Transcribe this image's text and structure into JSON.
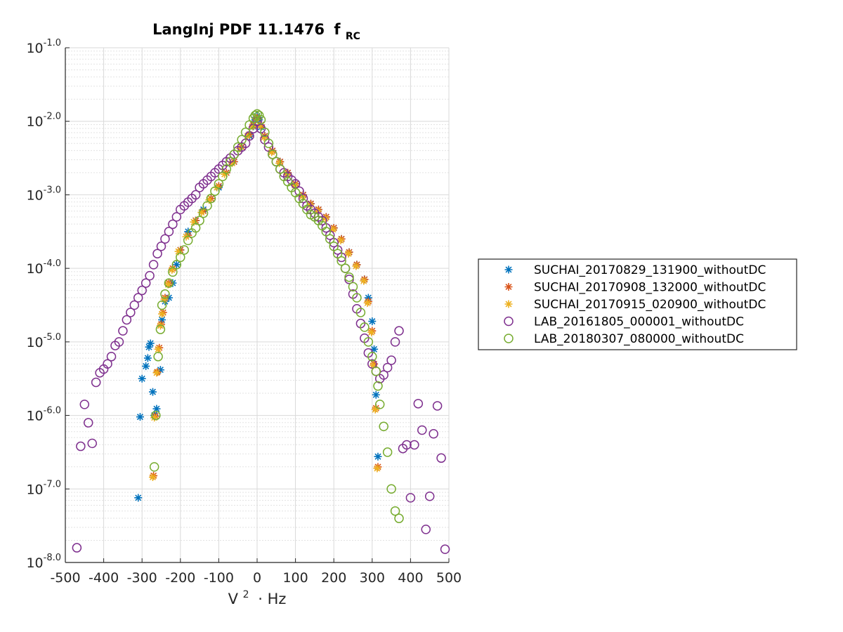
{
  "chart_data": {
    "type": "scatter",
    "title": "LangInj PDF 11.1476",
    "title_subscript": "RC",
    "title_f": "f",
    "xlabel": "V",
    "xlabel_sup": "2",
    "xlabel_unit": "· Hz",
    "ylabel": "",
    "xlim": [
      -500,
      500
    ],
    "ylim": [
      -8,
      -1
    ],
    "y_scale": "log10",
    "grid": true,
    "minor_grid": true,
    "legend_placement": "outside-right",
    "x_ticks": [
      -500,
      -400,
      -300,
      -200,
      -100,
      0,
      100,
      200,
      300,
      400,
      500
    ],
    "x_tick_labels": [
      "-500",
      "-400",
      "-300",
      "-200",
      "-100",
      "0",
      "100",
      "200",
      "300",
      "400",
      "500"
    ],
    "y_ticks": [
      -1,
      -2,
      -3,
      -4,
      -5,
      -6,
      -7,
      -8
    ],
    "y_tick_labels": [
      "-1.0",
      "-2.0",
      "-3.0",
      "-4.0",
      "-5.0",
      "-6.0",
      "-7.0",
      "-8.0"
    ],
    "y_tick_base": "10",
    "series": [
      {
        "name": "SUCHAI_20170829_131900_withoutDC",
        "marker": "asterisk",
        "color": "#0072BD",
        "x": [
          -310,
          -305,
          -300,
          -290,
          -285,
          -282,
          -278,
          -272,
          -268,
          -262,
          -252,
          -248,
          -240,
          -230,
          -220,
          -210,
          -200,
          -180,
          -160,
          -140,
          -120,
          -100,
          -80,
          -60,
          -40,
          -20,
          -10,
          -5,
          0,
          5,
          10,
          20,
          40,
          60,
          80,
          100,
          120,
          140,
          160,
          180,
          200,
          220,
          240,
          260,
          280,
          290,
          300,
          305,
          310,
          315
        ],
        "y": [
          -7.12,
          -6.02,
          -5.5,
          -5.33,
          -5.22,
          -5.07,
          -5.02,
          -5.68,
          -6.0,
          -5.91,
          -5.38,
          -4.7,
          -4.45,
          -4.4,
          -4.2,
          -3.95,
          -3.75,
          -3.5,
          -3.35,
          -3.2,
          -3.05,
          -2.9,
          -2.7,
          -2.55,
          -2.35,
          -2.2,
          -2.07,
          -1.98,
          -1.93,
          -1.98,
          -2.08,
          -2.2,
          -2.4,
          -2.55,
          -2.7,
          -2.85,
          -3.0,
          -3.12,
          -3.2,
          -3.3,
          -3.45,
          -3.6,
          -3.78,
          -3.95,
          -4.15,
          -4.4,
          -4.72,
          -5.1,
          -5.72,
          -6.56
        ]
      },
      {
        "name": "SUCHAI_20170908_132000_withoutDC",
        "marker": "asterisk",
        "color": "#D95319",
        "x": [
          -270,
          -265,
          -260,
          -255,
          -250,
          -245,
          -240,
          -230,
          -220,
          -200,
          -180,
          -160,
          -140,
          -120,
          -100,
          -80,
          -60,
          -40,
          -20,
          -10,
          0,
          10,
          20,
          40,
          60,
          80,
          100,
          120,
          140,
          160,
          180,
          200,
          220,
          240,
          260,
          280,
          290,
          300,
          305,
          310,
          315
        ],
        "y": [
          -6.82,
          -6.01,
          -5.41,
          -5.08,
          -4.76,
          -4.6,
          -4.4,
          -4.2,
          -4.0,
          -3.75,
          -3.55,
          -3.35,
          -3.22,
          -3.05,
          -2.88,
          -2.7,
          -2.55,
          -2.35,
          -2.18,
          -2.05,
          -1.95,
          -2.05,
          -2.2,
          -2.4,
          -2.55,
          -2.7,
          -2.85,
          -3.0,
          -3.12,
          -3.2,
          -3.3,
          -3.45,
          -3.6,
          -3.78,
          -3.95,
          -4.15,
          -4.45,
          -4.85,
          -5.3,
          -5.9,
          -6.7
        ]
      },
      {
        "name": "SUCHAI_20170915_020900_withoutDC",
        "marker": "asterisk",
        "color": "#EDB120",
        "x": [
          -272,
          -268,
          -262,
          -258,
          -252,
          -248,
          -242,
          -232,
          -222,
          -205,
          -185,
          -165,
          -145,
          -125,
          -105,
          -85,
          -65,
          -45,
          -25,
          -12,
          -3,
          8,
          18,
          38,
          58,
          78,
          98,
          118,
          138,
          158,
          178,
          198,
          218,
          238,
          258,
          278,
          288,
          298,
          303,
          308,
          313
        ],
        "y": [
          -6.84,
          -6.03,
          -5.42,
          -5.1,
          -4.78,
          -4.62,
          -4.42,
          -4.22,
          -4.02,
          -3.77,
          -3.57,
          -3.37,
          -3.24,
          -3.07,
          -2.9,
          -2.72,
          -2.57,
          -2.37,
          -2.2,
          -2.07,
          -1.96,
          -2.06,
          -2.22,
          -2.42,
          -2.57,
          -2.72,
          -2.87,
          -3.02,
          -3.14,
          -3.22,
          -3.32,
          -3.47,
          -3.62,
          -3.8,
          -3.97,
          -4.17,
          -4.47,
          -4.87,
          -5.32,
          -5.92,
          -6.72
        ]
      },
      {
        "name": "LAB_20161805_000001_withoutDC",
        "marker": "circle",
        "color": "#7E2F8E",
        "x": [
          -470,
          -460,
          -450,
          -440,
          -430,
          -420,
          -410,
          -400,
          -390,
          -380,
          -370,
          -360,
          -350,
          -340,
          -330,
          -320,
          -310,
          -300,
          -290,
          -280,
          -270,
          -260,
          -250,
          -240,
          -230,
          -220,
          -210,
          -200,
          -190,
          -180,
          -170,
          -160,
          -150,
          -140,
          -130,
          -120,
          -110,
          -100,
          -90,
          -80,
          -70,
          -60,
          -50,
          -40,
          -30,
          -20,
          -10,
          0,
          10,
          20,
          30,
          40,
          50,
          60,
          70,
          80,
          90,
          100,
          110,
          120,
          130,
          140,
          150,
          160,
          170,
          180,
          190,
          200,
          210,
          220,
          230,
          240,
          250,
          260,
          270,
          280,
          290,
          300,
          310,
          320,
          330,
          340,
          350,
          360,
          370,
          380,
          390,
          400,
          410,
          420,
          430,
          440,
          450,
          460,
          470,
          480,
          490
        ],
        "y": [
          -7.8,
          -6.42,
          -5.85,
          -6.1,
          -6.38,
          -5.55,
          -5.42,
          -5.37,
          -5.3,
          -5.2,
          -5.05,
          -5.0,
          -4.85,
          -4.7,
          -4.6,
          -4.5,
          -4.4,
          -4.3,
          -4.2,
          -4.1,
          -3.95,
          -3.8,
          -3.7,
          -3.6,
          -3.5,
          -3.4,
          -3.3,
          -3.2,
          -3.15,
          -3.1,
          -3.05,
          -3.0,
          -2.9,
          -2.85,
          -2.8,
          -2.75,
          -2.7,
          -2.65,
          -2.6,
          -2.55,
          -2.5,
          -2.45,
          -2.4,
          -2.35,
          -2.3,
          -2.2,
          -2.1,
          -2.0,
          -2.1,
          -2.25,
          -2.35,
          -2.45,
          -2.55,
          -2.65,
          -2.7,
          -2.75,
          -2.8,
          -2.85,
          -2.95,
          -3.05,
          -3.15,
          -3.2,
          -3.25,
          -3.3,
          -3.35,
          -3.45,
          -3.55,
          -3.65,
          -3.75,
          -3.85,
          -4.0,
          -4.15,
          -4.35,
          -4.55,
          -4.75,
          -4.95,
          -5.15,
          -5.3,
          -5.4,
          -5.5,
          -5.45,
          -5.35,
          -5.25,
          -5.0,
          -4.85,
          -6.45,
          -6.4,
          -7.12,
          -6.4,
          -5.84,
          -6.2,
          -7.55,
          -7.1,
          -6.25,
          -5.87,
          -6.58,
          -7.82
        ]
      },
      {
        "name": "LAB_20180307_080000_withoutDC",
        "marker": "circle",
        "color": "#77AC30",
        "x": [
          -268,
          -264,
          -258,
          -252,
          -248,
          -240,
          -230,
          -220,
          -210,
          -200,
          -190,
          -180,
          -170,
          -160,
          -150,
          -140,
          -130,
          -120,
          -110,
          -100,
          -90,
          -80,
          -70,
          -60,
          -50,
          -40,
          -30,
          -20,
          -10,
          -5,
          0,
          5,
          10,
          20,
          30,
          40,
          50,
          60,
          70,
          80,
          90,
          100,
          110,
          120,
          130,
          140,
          150,
          160,
          170,
          180,
          190,
          200,
          210,
          220,
          230,
          240,
          250,
          260,
          270,
          280,
          290,
          300,
          310,
          315,
          320,
          330,
          340,
          350,
          360,
          370
        ],
        "y": [
          -6.7,
          -6.0,
          -5.2,
          -4.83,
          -4.5,
          -4.35,
          -4.2,
          -4.05,
          -3.95,
          -3.85,
          -3.75,
          -3.62,
          -3.52,
          -3.45,
          -3.35,
          -3.25,
          -3.15,
          -3.05,
          -2.95,
          -2.85,
          -2.75,
          -2.65,
          -2.55,
          -2.45,
          -2.35,
          -2.25,
          -2.15,
          -2.05,
          -1.96,
          -1.92,
          -1.9,
          -1.92,
          -1.98,
          -2.15,
          -2.3,
          -2.45,
          -2.55,
          -2.65,
          -2.75,
          -2.82,
          -2.9,
          -2.97,
          -3.05,
          -3.12,
          -3.2,
          -3.27,
          -3.3,
          -3.35,
          -3.42,
          -3.5,
          -3.6,
          -3.7,
          -3.8,
          -3.9,
          -4.0,
          -4.12,
          -4.25,
          -4.4,
          -4.6,
          -4.8,
          -5.0,
          -5.2,
          -5.4,
          -5.6,
          -5.85,
          -6.15,
          -6.5,
          -7.0,
          -7.3,
          -7.4
        ],
        "y_note_skip": []
      }
    ]
  }
}
